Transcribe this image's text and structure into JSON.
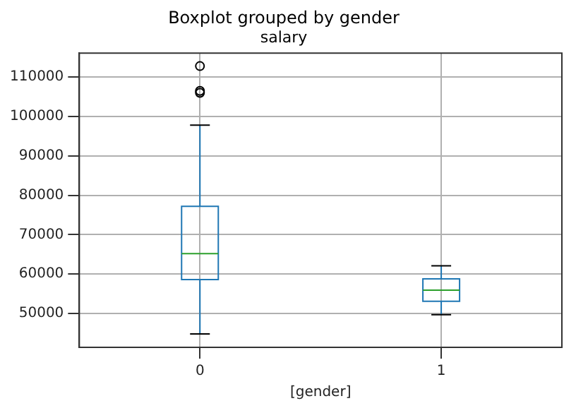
{
  "chart_data": {
    "type": "box",
    "title": "Boxplot grouped by gender",
    "subtitle": "salary",
    "xlabel": "[gender]",
    "categories": [
      "0",
      "1"
    ],
    "series": [
      {
        "color": "#1f77b4",
        "boxes": [
          {
            "low": 44800,
            "q1": 58600,
            "median": 65200,
            "q3": 77200,
            "high": 97800,
            "outliers": [
              112800,
              106500,
              106000
            ]
          },
          {
            "low": 49700,
            "q1": 53100,
            "median": 55900,
            "q3": 58800,
            "high": 62100
          }
        ]
      }
    ],
    "ylim": [
      41400,
      116100
    ],
    "yticks": [
      50000,
      60000,
      70000,
      80000,
      90000,
      100000,
      110000
    ],
    "grid": true,
    "legend": false
  }
}
